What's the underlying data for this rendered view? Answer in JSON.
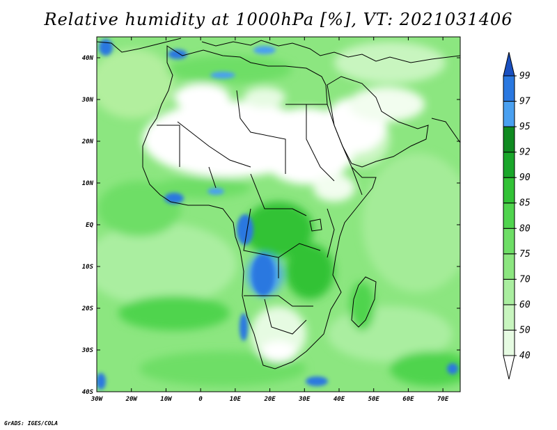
{
  "title": "Relative humidity at 1000hPa [%], VT: 2021031406",
  "credit": "GrADS: IGES/COLA",
  "map": {
    "lon_range": [
      -30,
      75
    ],
    "lat_range": [
      -40,
      45
    ],
    "lon_ticks": [
      {
        "value": -30,
        "label": "30W"
      },
      {
        "value": -20,
        "label": "20W"
      },
      {
        "value": -10,
        "label": "10W"
      },
      {
        "value": 0,
        "label": "0"
      },
      {
        "value": 10,
        "label": "10E"
      },
      {
        "value": 20,
        "label": "20E"
      },
      {
        "value": 30,
        "label": "30E"
      },
      {
        "value": 40,
        "label": "40E"
      },
      {
        "value": 50,
        "label": "50E"
      },
      {
        "value": 60,
        "label": "60E"
      },
      {
        "value": 70,
        "label": "70E"
      }
    ],
    "lat_ticks": [
      {
        "value": 40,
        "label": "40N"
      },
      {
        "value": 30,
        "label": "30N"
      },
      {
        "value": 20,
        "label": "20N"
      },
      {
        "value": 10,
        "label": "10N"
      },
      {
        "value": 0,
        "label": "EQ"
      },
      {
        "value": -10,
        "label": "10S"
      },
      {
        "value": -20,
        "label": "20S"
      },
      {
        "value": -30,
        "label": "30S"
      },
      {
        "value": -40,
        "label": "40S"
      }
    ]
  },
  "colorbar": {
    "levels": [
      "40",
      "50",
      "60",
      "70",
      "75",
      "80",
      "85",
      "90",
      "92",
      "95",
      "97",
      "99"
    ],
    "colors": [
      "#ffffff",
      "#e6fbe2",
      "#c8f5bf",
      "#aaeea0",
      "#8ce680",
      "#6ede66",
      "#50d44e",
      "#32c236",
      "#1aa62a",
      "#0f8a20",
      "#4aa0f0",
      "#2a78e0",
      "#1a50c0"
    ]
  }
}
